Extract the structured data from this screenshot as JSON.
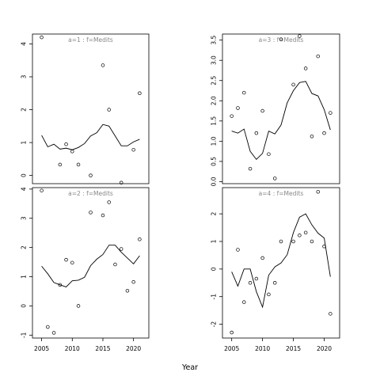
{
  "chart_data": {
    "type": "scatter",
    "xlabel": "Year",
    "panels": [
      {
        "title": "a=1  :  f=Medits",
        "xlim": [
          2003.5,
          2022.5
        ],
        "ylim": [
          -0.25,
          4.3
        ],
        "yticks": [
          0,
          1,
          2,
          3,
          4
        ],
        "ytick_labels": [
          "0",
          "1",
          "2",
          "3",
          "4"
        ],
        "points_x": [
          2005,
          2008,
          2009,
          2010,
          2011,
          2013,
          2015,
          2016,
          2018,
          2020,
          2021
        ],
        "points_y": [
          4.2,
          0.33,
          0.95,
          0.73,
          0.33,
          0.0,
          3.35,
          2.0,
          -0.22,
          0.78,
          2.5
        ],
        "line_x": [
          2005,
          2006,
          2007,
          2008,
          2009,
          2010,
          2011,
          2012,
          2013,
          2014,
          2015,
          2016,
          2017,
          2018,
          2019,
          2020,
          2021
        ],
        "line_y": [
          1.22,
          0.87,
          0.95,
          0.8,
          0.83,
          0.78,
          0.85,
          0.97,
          1.2,
          1.3,
          1.55,
          1.5,
          1.2,
          0.9,
          0.9,
          1.02,
          1.1
        ]
      },
      {
        "title": "a=3  :  f=Medits",
        "xlim": [
          2003.5,
          2022.5
        ],
        "ylim": [
          -0.05,
          3.65
        ],
        "yticks": [
          0.0,
          0.5,
          1.0,
          1.5,
          2.0,
          2.5,
          3.0,
          3.5
        ],
        "ytick_labels": [
          "0.0",
          "0.5",
          "1.0",
          "1.5",
          "2.0",
          "2.5",
          "3.0",
          "3.5"
        ],
        "points_x": [
          2005,
          2006,
          2007,
          2008,
          2009,
          2010,
          2011,
          2012,
          2013,
          2015,
          2016,
          2017,
          2018,
          2019,
          2020,
          2021
        ],
        "points_y": [
          1.62,
          1.82,
          2.2,
          0.32,
          1.2,
          1.75,
          0.68,
          0.08,
          3.52,
          2.4,
          3.6,
          2.8,
          1.12,
          3.1,
          1.2,
          1.7
        ],
        "line_x": [
          2005,
          2006,
          2007,
          2008,
          2009,
          2010,
          2011,
          2012,
          2013,
          2014,
          2015,
          2016,
          2017,
          2018,
          2019,
          2020,
          2021
        ],
        "line_y": [
          1.25,
          1.2,
          1.3,
          0.75,
          0.55,
          0.7,
          1.25,
          1.18,
          1.4,
          1.95,
          2.25,
          2.45,
          2.48,
          2.18,
          2.12,
          1.78,
          1.28
        ]
      },
      {
        "title": "a=2  :  f=Medits",
        "xlim": [
          2003.5,
          2022.5
        ],
        "ylim": [
          -1.1,
          4.05
        ],
        "yticks": [
          -1,
          0,
          1,
          2,
          3,
          4
        ],
        "ytick_labels": [
          "-1",
          "0",
          "1",
          "2",
          "3",
          "4"
        ],
        "points_x": [
          2005,
          2006,
          2007,
          2008,
          2009,
          2010,
          2011,
          2013,
          2015,
          2016,
          2017,
          2018,
          2019,
          2020,
          2021
        ],
        "points_y": [
          3.95,
          -0.72,
          -0.92,
          0.72,
          1.58,
          1.48,
          0.0,
          3.2,
          3.1,
          3.55,
          1.42,
          1.95,
          0.52,
          0.82,
          2.28
        ],
        "line_x": [
          2005,
          2006,
          2007,
          2008,
          2009,
          2010,
          2011,
          2012,
          2013,
          2014,
          2015,
          2016,
          2017,
          2018,
          2019,
          2020,
          2021
        ],
        "line_y": [
          1.36,
          1.1,
          0.8,
          0.72,
          0.65,
          0.86,
          0.88,
          0.98,
          1.38,
          1.6,
          1.76,
          2.08,
          2.08,
          1.84,
          1.64,
          1.44,
          1.72
        ]
      },
      {
        "title": "a=4  :  f=Medits",
        "xlim": [
          2003.5,
          2022.5
        ],
        "ylim": [
          -2.5,
          2.95
        ],
        "yticks": [
          -2,
          -1,
          0,
          1,
          2
        ],
        "ytick_labels": [
          "-2",
          "-1",
          "0",
          "1",
          "2"
        ],
        "points_x": [
          2005,
          2006,
          2007,
          2008,
          2009,
          2010,
          2011,
          2012,
          2013,
          2015,
          2016,
          2017,
          2018,
          2019,
          2020,
          2021
        ],
        "points_y": [
          -2.3,
          0.7,
          -1.2,
          -0.5,
          -0.35,
          0.4,
          -0.92,
          -0.5,
          1.0,
          1.0,
          1.22,
          1.32,
          1.0,
          2.8,
          0.82,
          -1.62
        ],
        "line_x": [
          2005,
          2006,
          2007,
          2008,
          2009,
          2010,
          2011,
          2012,
          2013,
          2014,
          2015,
          2016,
          2017,
          2018,
          2019,
          2020,
          2021
        ],
        "line_y": [
          -0.1,
          -0.62,
          0.0,
          0.0,
          -0.82,
          -1.38,
          -0.22,
          0.08,
          0.22,
          0.52,
          1.32,
          1.88,
          2.0,
          1.6,
          1.3,
          1.12,
          -0.28
        ]
      }
    ],
    "xticks": [
      2005,
      2010,
      2015,
      2020
    ],
    "xtick_labels": [
      "2005",
      "2010",
      "2015",
      "2020"
    ],
    "grid": false,
    "legend": "none"
  }
}
